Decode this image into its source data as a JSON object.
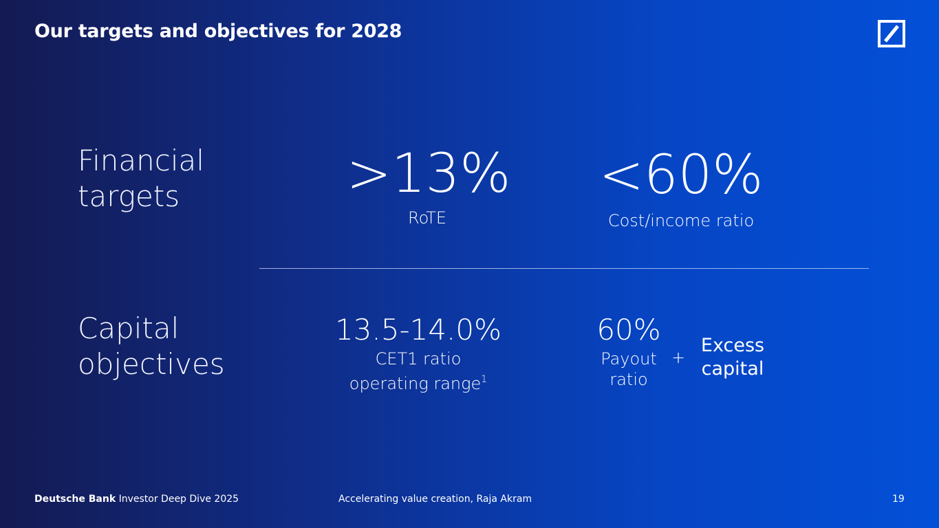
{
  "header": {
    "title": "Our targets and objectives for 2028"
  },
  "financial": {
    "label_line1": "Financial",
    "label_line2": "targets",
    "rote_value": ">13%",
    "rote_label": "RoTE",
    "cir_value": "<60%",
    "cir_label": "Cost/income ratio"
  },
  "capital": {
    "label_line1": "Capital",
    "label_line2": "objectives",
    "cet1_value": "13.5-14.0%",
    "cet1_label_line1": "CET1 ratio",
    "cet1_label_line2": "operating range",
    "cet1_footnote": "1",
    "payout_value": "60%",
    "payout_label_line1": "Payout",
    "payout_label_line2": "ratio",
    "plus": "+",
    "excess_line1": "Excess",
    "excess_line2": "capital"
  },
  "footer": {
    "brand": "Deutsche Bank",
    "event": "Investor Deep Dive 2025",
    "presentation": "Accelerating value creation, Raja Akram",
    "page_number": "19"
  },
  "logo": {
    "icon": "deutsche-bank-logo-icon",
    "color": "#ffffff"
  }
}
